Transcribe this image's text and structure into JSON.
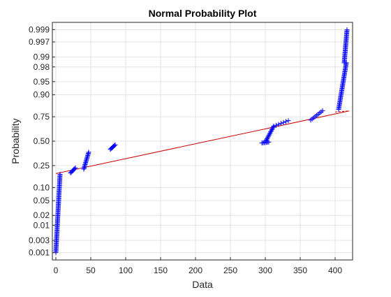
{
  "chart_data": {
    "type": "scatter",
    "title": "Normal Probability Plot",
    "xlabel": "Data",
    "ylabel": "Probability",
    "xlim": [
      -5,
      425
    ],
    "xticks": [
      0,
      50,
      100,
      150,
      200,
      250,
      300,
      350,
      400
    ],
    "xtick_labels": [
      "0",
      "50",
      "100",
      "150",
      "200",
      "250",
      "300",
      "350",
      "400"
    ],
    "y_scale": "normal-probability",
    "ylim_probability": [
      0.0005,
      0.9995
    ],
    "yticks": [
      0.001,
      0.003,
      0.01,
      0.02,
      0.05,
      0.1,
      0.25,
      0.5,
      0.75,
      0.9,
      0.95,
      0.98,
      0.99,
      0.997,
      0.999
    ],
    "ytick_labels": [
      "0.001",
      "0.003",
      "0.01",
      "0.02",
      "0.05",
      "0.10",
      "0.25",
      "0.50",
      "0.75",
      "0.90",
      "0.95",
      "0.98",
      "0.99",
      "0.997",
      "0.999"
    ],
    "grid": true,
    "marker": "+",
    "marker_color": "#0000ff",
    "reference_line_color": "#cc0000",
    "reference_line": {
      "x": [
        0,
        420
      ],
      "p": [
        0.185,
        0.798
      ]
    },
    "clusters": [
      {
        "x_range": [
          0,
          6
        ],
        "p_range": [
          0.001,
          0.18
        ]
      },
      {
        "x_range": [
          21,
          28
        ],
        "p_range": [
          0.19,
          0.23
        ]
      },
      {
        "x_range": [
          40,
          47
        ],
        "p_range": [
          0.22,
          0.38
        ]
      },
      {
        "x_range": [
          78,
          85
        ],
        "p_range": [
          0.41,
          0.46
        ]
      },
      {
        "x_range": [
          295,
          305
        ],
        "p_range": [
          0.48,
          0.49
        ]
      },
      {
        "x_range": [
          300,
          312
        ],
        "p_range": [
          0.49,
          0.66
        ]
      },
      {
        "x_range": [
          312,
          333
        ],
        "p_range": [
          0.66,
          0.715
        ]
      },
      {
        "x_range": [
          365,
          382
        ],
        "p_range": [
          0.72,
          0.8
        ]
      },
      {
        "x_range": [
          405,
          416
        ],
        "p_range": [
          0.81,
          0.985
        ]
      },
      {
        "x_range": [
          413,
          417
        ],
        "p_range": [
          0.985,
          0.999
        ]
      }
    ]
  }
}
